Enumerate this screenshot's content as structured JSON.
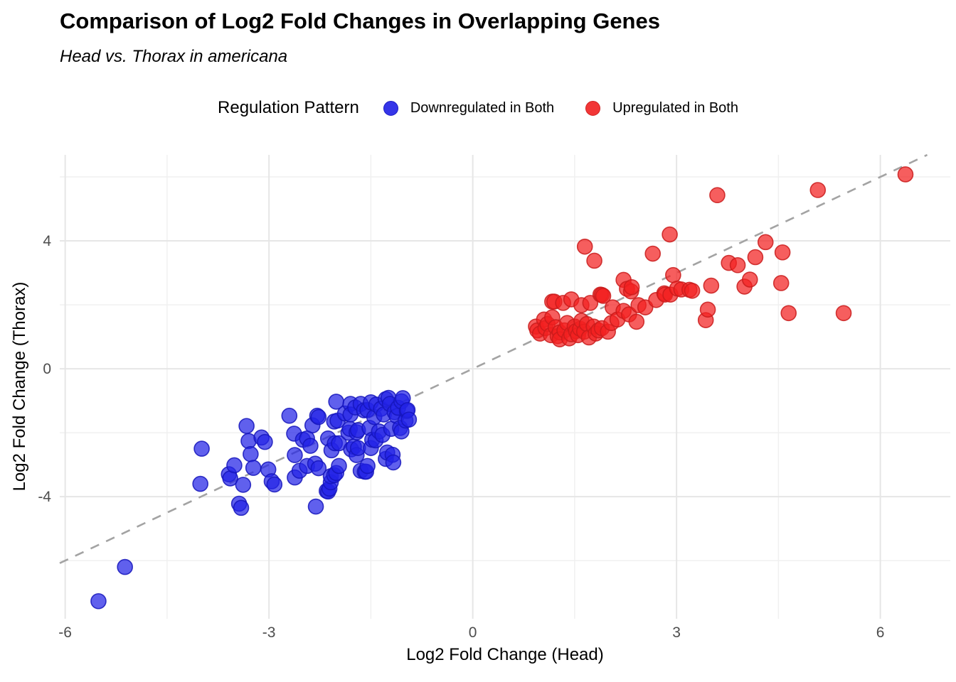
{
  "header": {
    "title": "Comparison of Log2 Fold Changes in Overlapping Genes",
    "subtitle": "Head vs. Thorax in americana"
  },
  "legend": {
    "title": "Regulation Pattern",
    "items": [
      {
        "label": "Downregulated in Both",
        "color": "#3535e8",
        "stroke": "#1d1dc4"
      },
      {
        "label": "Upregulated in Both",
        "color": "#f23636",
        "stroke": "#cf2323"
      }
    ]
  },
  "chart_data": {
    "type": "scatter",
    "title": "Comparison of Log2 Fold Changes in Overlapping Genes",
    "subtitle": "Head vs. Thorax in americana",
    "xlabel": "Log2 Fold Change (Head)",
    "ylabel": "Log2 Fold Change (Thorax)",
    "xlim": [
      -6.08,
      7.03
    ],
    "ylim": [
      -7.82,
      6.69
    ],
    "x_ticks": [
      -6,
      -3,
      0,
      3,
      6
    ],
    "y_ticks": [
      -4,
      0,
      4
    ],
    "x_minor_ticks": [
      -4.5,
      -1.5,
      1.5,
      4.5
    ],
    "y_minor_ticks": [
      -6,
      -2,
      2,
      6
    ],
    "grid": true,
    "legend_position": "top",
    "tick_label_color": "#4d4d4d",
    "major_grid_color": "#e6e6e6",
    "minor_grid_color": "#f0f0f0",
    "reference_line": {
      "equation": "y = x",
      "style": "dashed",
      "color": "#a3a3a3"
    },
    "point_style": {
      "radius": 10.5,
      "fill_opacity": 0.72,
      "stroke_width": 1.6
    },
    "series": [
      {
        "name": "Downregulated in Both",
        "color": "#2323e6",
        "stroke": "#1515bb",
        "points": [
          [
            -5.51,
            -7.27
          ],
          [
            -5.12,
            -6.2
          ],
          [
            -4.01,
            -3.6
          ],
          [
            -3.99,
            -2.5
          ],
          [
            -3.59,
            -3.3
          ],
          [
            -3.57,
            -3.43
          ],
          [
            -3.51,
            -3.02
          ],
          [
            -3.44,
            -4.22
          ],
          [
            -3.41,
            -4.35
          ],
          [
            -3.38,
            -3.63
          ],
          [
            -3.33,
            -1.79
          ],
          [
            -3.3,
            -2.26
          ],
          [
            -3.27,
            -2.67
          ],
          [
            -3.23,
            -3.1
          ],
          [
            -3.11,
            -2.15
          ],
          [
            -3.06,
            -2.29
          ],
          [
            -3.01,
            -3.15
          ],
          [
            -2.96,
            -3.52
          ],
          [
            -2.92,
            -3.62
          ],
          [
            -2.7,
            -1.47
          ],
          [
            -2.63,
            -2.03
          ],
          [
            -2.62,
            -2.7
          ],
          [
            -2.62,
            -3.4
          ],
          [
            -2.55,
            -3.19
          ],
          [
            -2.5,
            -2.22
          ],
          [
            -2.44,
            -2.18
          ],
          [
            -2.44,
            -3.04
          ],
          [
            -2.39,
            -2.41
          ],
          [
            -2.36,
            -1.77
          ],
          [
            -2.32,
            -2.97
          ],
          [
            -2.31,
            -4.31
          ],
          [
            -2.29,
            -1.47
          ],
          [
            -2.27,
            -3.11
          ],
          [
            -2.27,
            -1.51
          ],
          [
            -2.15,
            -3.82
          ],
          [
            -2.13,
            -2.18
          ],
          [
            -2.13,
            -3.84
          ],
          [
            -2.11,
            -3.75
          ],
          [
            -2.09,
            -3.55
          ],
          [
            -2.09,
            -3.36
          ],
          [
            -2.08,
            -2.55
          ],
          [
            -2.04,
            -1.65
          ],
          [
            -2.04,
            -3.33
          ],
          [
            -2.03,
            -2.33
          ],
          [
            -2.01,
            -1.03
          ],
          [
            -2.01,
            -3.26
          ],
          [
            -1.99,
            -1.62
          ],
          [
            -1.97,
            -2.33
          ],
          [
            -1.97,
            -3.04
          ],
          [
            -1.88,
            -1.4
          ],
          [
            -1.83,
            -2.0
          ],
          [
            -1.81,
            -1.88
          ],
          [
            -1.8,
            -1.1
          ],
          [
            -1.8,
            -1.43
          ],
          [
            -1.79,
            -2.52
          ],
          [
            -1.75,
            -2.44
          ],
          [
            -1.73,
            -1.21
          ],
          [
            -1.71,
            -1.99
          ],
          [
            -1.71,
            -2.7
          ],
          [
            -1.69,
            -1.92
          ],
          [
            -1.69,
            -2.48
          ],
          [
            -1.65,
            -1.1
          ],
          [
            -1.65,
            -3.19
          ],
          [
            -1.6,
            -1.3
          ],
          [
            -1.59,
            -3.22
          ],
          [
            -1.57,
            -3.22
          ],
          [
            -1.55,
            -1.29
          ],
          [
            -1.55,
            -3.04
          ],
          [
            -1.52,
            -1.85
          ],
          [
            -1.5,
            -1.05
          ],
          [
            -1.5,
            -2.48
          ],
          [
            -1.48,
            -2.22
          ],
          [
            -1.45,
            -1.51
          ],
          [
            -1.43,
            -2.24
          ],
          [
            -1.42,
            -1.12
          ],
          [
            -1.38,
            -1.96
          ],
          [
            -1.35,
            -1.25
          ],
          [
            -1.33,
            -2.07
          ],
          [
            -1.31,
            -1.43
          ],
          [
            -1.28,
            -0.95
          ],
          [
            -1.28,
            -2.82
          ],
          [
            -1.26,
            -2.62
          ],
          [
            -1.24,
            -0.91
          ],
          [
            -1.22,
            -1.1
          ],
          [
            -1.2,
            -1.88
          ],
          [
            -1.18,
            -2.69
          ],
          [
            -1.17,
            -2.93
          ],
          [
            -1.15,
            -1.36
          ],
          [
            -1.12,
            -1.48
          ],
          [
            -1.1,
            -1.22
          ],
          [
            -1.07,
            -1.85
          ],
          [
            -1.05,
            -1.02
          ],
          [
            -1.05,
            -1.96
          ],
          [
            -1.03,
            -0.92
          ],
          [
            -0.99,
            -1.62
          ],
          [
            -0.97,
            -1.32
          ],
          [
            -0.96,
            -1.29
          ],
          [
            -0.94,
            -1.59
          ]
        ]
      },
      {
        "name": "Upregulated in Both",
        "color": "#f22020",
        "stroke": "#c91b1b",
        "points": [
          [
            0.93,
            1.32
          ],
          [
            0.95,
            1.2
          ],
          [
            0.99,
            1.1
          ],
          [
            1.05,
            1.54
          ],
          [
            1.07,
            1.27
          ],
          [
            1.1,
            1.4
          ],
          [
            1.15,
            1.05
          ],
          [
            1.17,
            1.61
          ],
          [
            1.17,
            2.1
          ],
          [
            1.2,
            2.1
          ],
          [
            1.22,
            1.3
          ],
          [
            1.25,
            1.02
          ],
          [
            1.28,
            1.14
          ],
          [
            1.28,
            0.92
          ],
          [
            1.33,
            2.06
          ],
          [
            1.35,
            1.2
          ],
          [
            1.39,
            1.43
          ],
          [
            1.42,
            0.95
          ],
          [
            1.45,
            1.08
          ],
          [
            1.45,
            2.17
          ],
          [
            1.5,
            1.32
          ],
          [
            1.52,
            1.18
          ],
          [
            1.55,
            1.05
          ],
          [
            1.58,
            1.25
          ],
          [
            1.6,
            1.5
          ],
          [
            1.6,
            1.99
          ],
          [
            1.64,
            1.16
          ],
          [
            1.65,
            3.82
          ],
          [
            1.68,
            1.4
          ],
          [
            1.71,
            0.98
          ],
          [
            1.73,
            2.06
          ],
          [
            1.78,
            1.32
          ],
          [
            1.79,
            3.38
          ],
          [
            1.81,
            1.1
          ],
          [
            1.85,
            1.2
          ],
          [
            1.88,
            2.32
          ],
          [
            1.9,
            1.27
          ],
          [
            1.9,
            2.31
          ],
          [
            1.92,
            2.28
          ],
          [
            1.99,
            1.16
          ],
          [
            2.04,
            1.43
          ],
          [
            2.06,
            1.92
          ],
          [
            2.13,
            1.54
          ],
          [
            2.22,
            1.81
          ],
          [
            2.22,
            2.78
          ],
          [
            2.27,
            2.5
          ],
          [
            2.3,
            1.7
          ],
          [
            2.33,
            2.42
          ],
          [
            2.34,
            2.55
          ],
          [
            2.41,
            1.47
          ],
          [
            2.44,
            1.99
          ],
          [
            2.54,
            1.92
          ],
          [
            2.65,
            3.6
          ],
          [
            2.7,
            2.15
          ],
          [
            2.82,
            2.36
          ],
          [
            2.83,
            2.32
          ],
          [
            2.9,
            4.2
          ],
          [
            2.91,
            2.32
          ],
          [
            2.95,
            2.93
          ],
          [
            3.01,
            2.51
          ],
          [
            3.07,
            2.48
          ],
          [
            3.19,
            2.47
          ],
          [
            3.23,
            2.44
          ],
          [
            3.43,
            1.52
          ],
          [
            3.46,
            1.85
          ],
          [
            3.51,
            2.6
          ],
          [
            3.6,
            5.43
          ],
          [
            3.77,
            3.31
          ],
          [
            3.9,
            3.24
          ],
          [
            4.0,
            2.57
          ],
          [
            4.08,
            2.79
          ],
          [
            4.16,
            3.49
          ],
          [
            4.31,
            3.96
          ],
          [
            4.54,
            2.68
          ],
          [
            4.56,
            3.64
          ],
          [
            4.65,
            1.74
          ],
          [
            5.08,
            5.59
          ],
          [
            5.46,
            1.74
          ],
          [
            6.37,
            6.08
          ]
        ]
      }
    ]
  }
}
